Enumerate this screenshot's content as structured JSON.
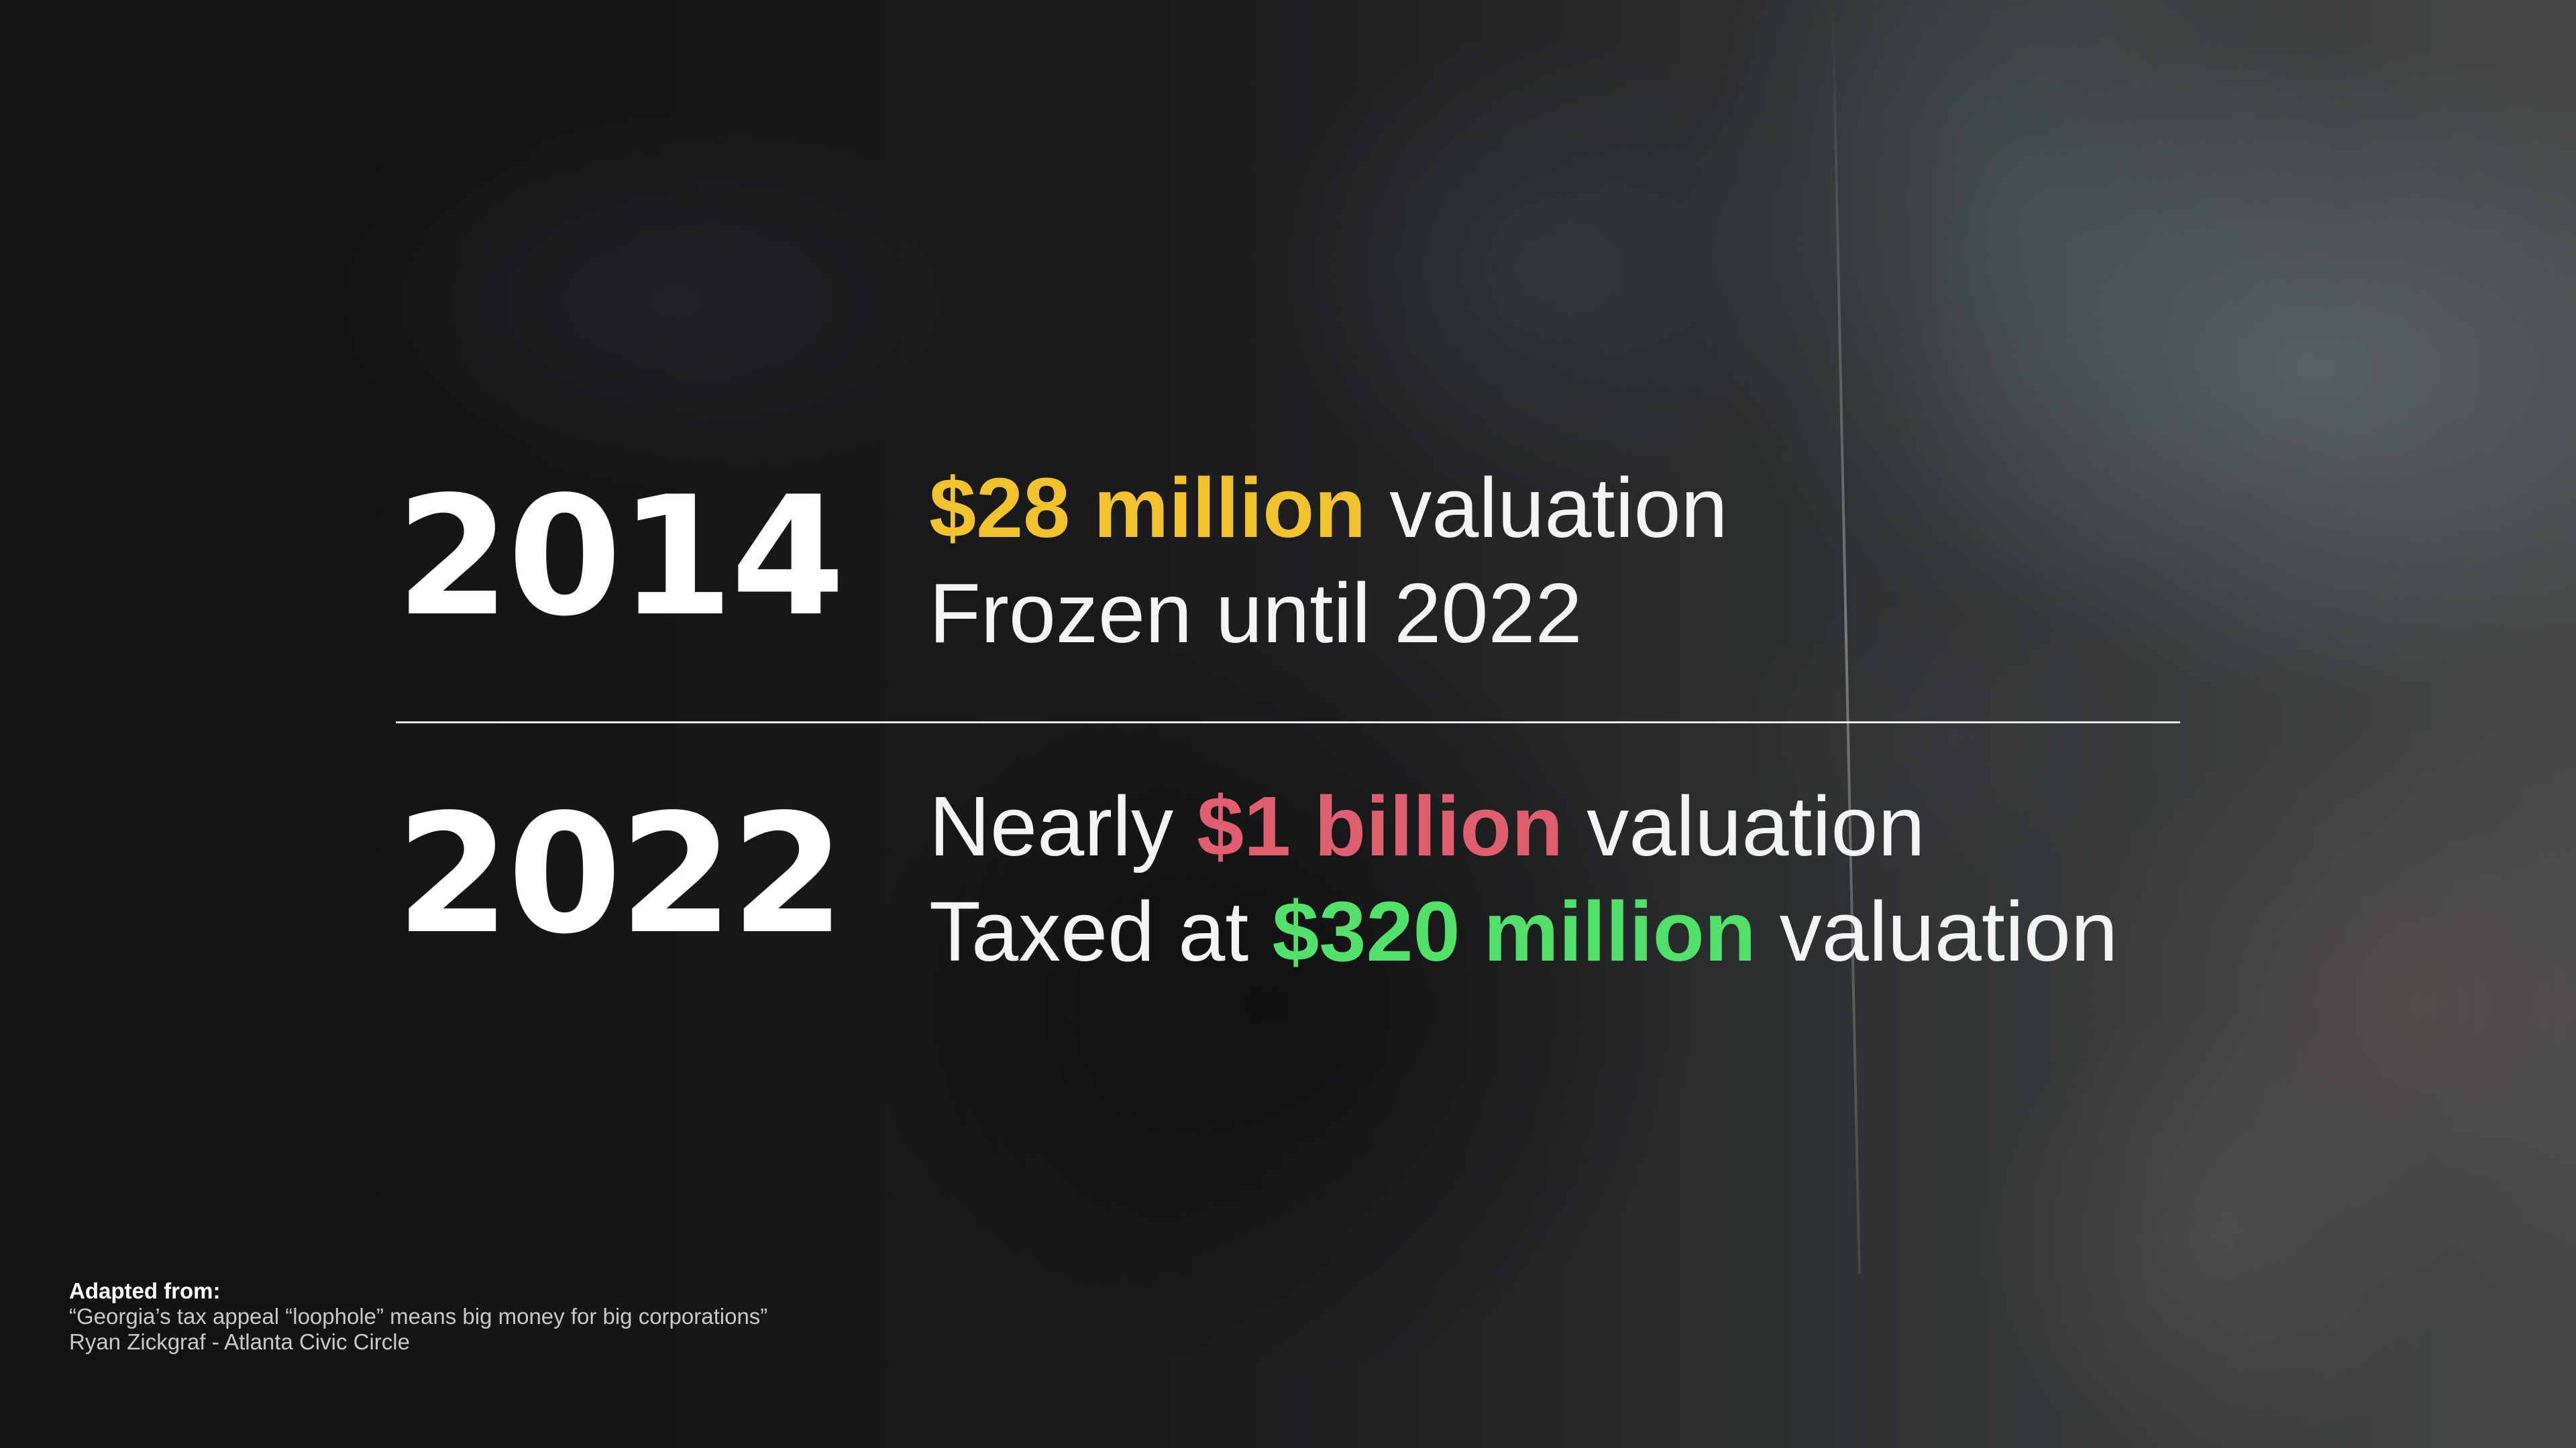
{
  "colors": {
    "yellow": "#f2c12e",
    "red": "#e05f6f",
    "green": "#52df6a"
  },
  "row_2014": {
    "year": "2014",
    "line1_highlight": "$28 million",
    "line1_rest": " valuation",
    "line2": "Frozen until 2022"
  },
  "row_2022": {
    "year": "2022",
    "line1_before": "Nearly ",
    "line1_highlight": "$1 billion",
    "line1_after": " valuation",
    "line2_before": "Taxed at ",
    "line2_highlight": "$320 million",
    "line2_after": " valuation"
  },
  "source": {
    "heading": "Adapted from:",
    "article": "“Georgia’s tax appeal “loophole” means big money for big corporations”",
    "byline": "Ryan Zickgraf - Atlanta Civic Circle"
  }
}
